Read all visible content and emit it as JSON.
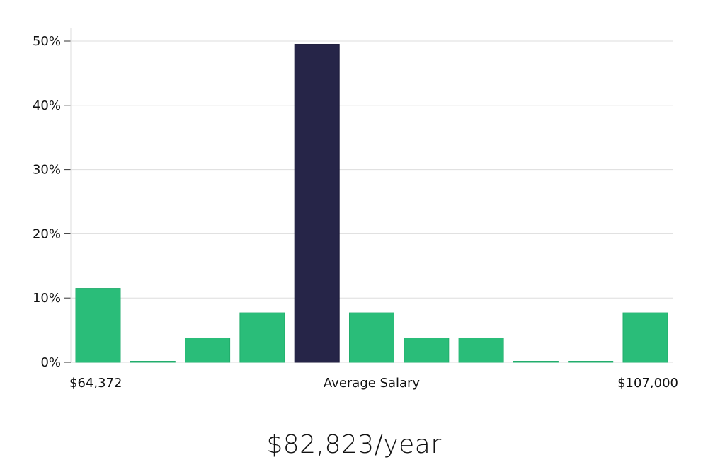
{
  "chart_data": {
    "type": "bar",
    "title": "",
    "xlabel": "",
    "ylabel": "",
    "ylim": [
      0,
      50
    ],
    "y_ticks": [
      "0%",
      "10%",
      "20%",
      "30%",
      "40%",
      "50%"
    ],
    "y_tick_values": [
      0,
      10,
      20,
      30,
      40,
      50
    ],
    "grid": "horizontal",
    "values": [
      11.5,
      0,
      3.8,
      7.7,
      49.5,
      7.7,
      3.8,
      3.8,
      0,
      0,
      7.7
    ],
    "highlight_index": 4,
    "colors": {
      "bar": "#2abd79",
      "highlight": "#262548",
      "grid": "#dddddd",
      "axis": "#dddddd"
    },
    "x_labels": {
      "left": "$64,372",
      "center": "Average Salary",
      "right": "$107,000"
    }
  },
  "summary": {
    "salary": "$82,823/year"
  }
}
